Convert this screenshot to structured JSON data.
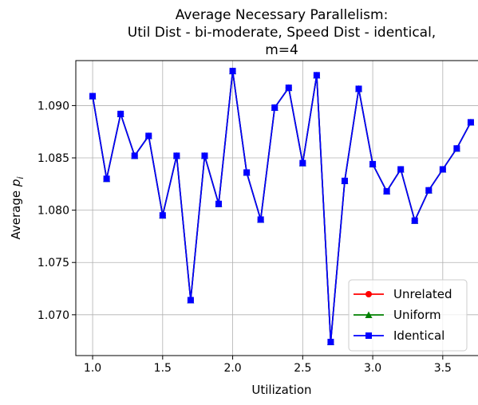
{
  "chart_data": {
    "type": "line",
    "title_lines": [
      "Average Necessary Parallelism:",
      "Util Dist - bi-moderate, Speed Dist - identical,",
      "m=4"
    ],
    "xlabel": "Utilization",
    "ylabel_main": "Average ",
    "ylabel_sym": "p",
    "ylabel_sub": "i",
    "xlim": [
      0.88,
      3.82
    ],
    "ylim": [
      1.0661,
      1.0943
    ],
    "xticks": [
      1.0,
      1.5,
      2.0,
      2.5,
      3.0,
      3.5
    ],
    "xtick_labels": [
      "1.0",
      "1.5",
      "2.0",
      "2.5",
      "3.0",
      "3.5"
    ],
    "yticks": [
      1.07,
      1.075,
      1.08,
      1.085,
      1.09
    ],
    "ytick_labels": [
      "1.070",
      "1.075",
      "1.080",
      "1.085",
      "1.090"
    ],
    "grid": true,
    "legend_position": "lower-right",
    "x": [
      1.0,
      1.1,
      1.2,
      1.3,
      1.4,
      1.5,
      1.6,
      1.7,
      1.8,
      1.9,
      2.0,
      2.1,
      2.2,
      2.3,
      2.4,
      2.5,
      2.6,
      2.7,
      2.8,
      2.9,
      3.0,
      3.1,
      3.2,
      3.3,
      3.4,
      3.5,
      3.6,
      3.7
    ],
    "series": [
      {
        "name": "Unrelated",
        "color": "#ff0000",
        "marker": "circle",
        "values": [
          1.0909,
          1.083,
          1.0892,
          1.0852,
          1.0871,
          1.0795,
          1.0852,
          1.0714,
          1.0852,
          1.0806,
          1.0933,
          1.0836,
          1.0791,
          1.0898,
          1.0917,
          1.0845,
          1.0929,
          1.0674,
          1.0828,
          1.0916,
          1.0844,
          1.0818,
          1.0839,
          1.079,
          1.0819,
          1.0839,
          1.0859,
          1.0884
        ]
      },
      {
        "name": "Uniform",
        "color": "#008000",
        "marker": "triangle",
        "values": [
          1.0909,
          1.083,
          1.0892,
          1.0852,
          1.0871,
          1.0795,
          1.0852,
          1.0714,
          1.0852,
          1.0806,
          1.0933,
          1.0836,
          1.0791,
          1.0898,
          1.0917,
          1.0845,
          1.0929,
          1.0674,
          1.0828,
          1.0916,
          1.0844,
          1.0818,
          1.0839,
          1.079,
          1.0819,
          1.0839,
          1.0859,
          1.0884
        ]
      },
      {
        "name": "Identical",
        "color": "#0000ff",
        "marker": "square",
        "values": [
          1.0909,
          1.083,
          1.0892,
          1.0852,
          1.0871,
          1.0795,
          1.0852,
          1.0714,
          1.0852,
          1.0806,
          1.0933,
          1.0836,
          1.0791,
          1.0898,
          1.0917,
          1.0845,
          1.0929,
          1.0674,
          1.0828,
          1.0916,
          1.0844,
          1.0818,
          1.0839,
          1.079,
          1.0819,
          1.0839,
          1.0859,
          1.0884
        ]
      }
    ]
  }
}
